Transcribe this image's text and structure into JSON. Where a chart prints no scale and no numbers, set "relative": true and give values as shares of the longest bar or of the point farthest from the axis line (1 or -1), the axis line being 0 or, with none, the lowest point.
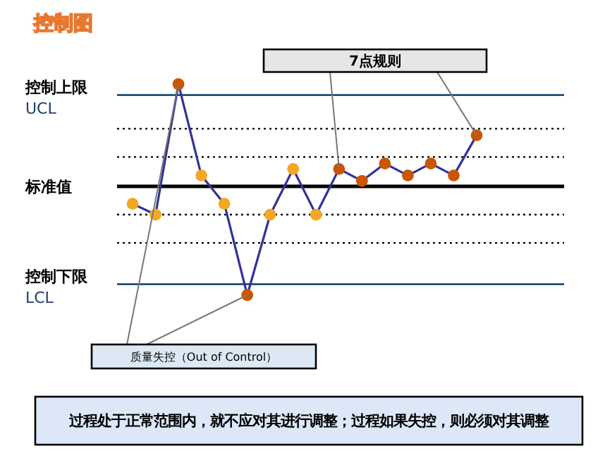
{
  "chart_data": {
    "type": "line",
    "title": "控制图",
    "relative": true,
    "marker": "circle",
    "line_style": "solid",
    "categories": [
      null,
      null,
      null,
      null,
      null,
      null,
      null,
      null,
      null,
      null,
      null,
      null,
      null,
      null,
      null,
      null
    ],
    "series": [
      {
        "color": "#333399",
        "values": [
          -0.16,
          -0.26,
          0.94,
          0.1,
          -0.16,
          -1,
          -0.26,
          0.16,
          -0.26,
          0.16,
          0.05,
          0.21,
          0.1,
          0.21,
          0.1,
          0.47
        ],
        "colors": [
          "#f5a623",
          "#f5a623",
          "#cc5500",
          "#f5a623",
          "#f5a623",
          "#cc5500",
          "#f5a623",
          "#f5a623",
          "#f5a623",
          "#cc5500",
          "#cc5500",
          "#cc5500",
          "#cc5500",
          "#cc5500",
          "#cc5500",
          "#cc5500"
        ]
      }
    ],
    "ref_lines": [
      {
        "axis": "y",
        "value": 0.84,
        "label": "控制上限\nUCL",
        "color": "#1f4e79",
        "line_style": "solid"
      },
      {
        "axis": "y",
        "value": 0.53,
        "color": "#000000",
        "line_style": "dotted"
      },
      {
        "axis": "y",
        "value": 0.27,
        "color": "#000000",
        "line_style": "dotted"
      },
      {
        "axis": "y",
        "value": 0,
        "label": "标准值",
        "color": "#000000",
        "line_style": "solid"
      },
      {
        "axis": "y",
        "value": -0.26,
        "color": "#000000",
        "line_style": "dotted"
      },
      {
        "axis": "y",
        "value": -0.52,
        "color": "#000000",
        "line_style": "dotted"
      },
      {
        "axis": "y",
        "value": -0.9,
        "label": "控制下限\nLCL",
        "color": "#1f4e79",
        "line_style": "solid"
      }
    ],
    "annotations": [
      "7点规则",
      "质量失控（Out of Control）",
      "过程处于正常范围内，就不应对其进行调整；过程如果失控，则必须对其调整"
    ]
  }
}
